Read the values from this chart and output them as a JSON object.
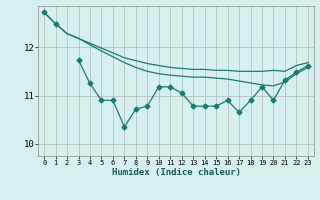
{
  "title": "",
  "xlabel": "Humidex (Indice chaleur)",
  "ylabel": "",
  "bg_color": "#d5f0ee",
  "line_color": "#1a7a6e",
  "grid_color": "#b0b8b4",
  "xlim": [
    -0.5,
    23.5
  ],
  "ylim": [
    9.75,
    12.85
  ],
  "yticks": [
    10,
    11,
    12
  ],
  "xticks": [
    0,
    1,
    2,
    3,
    4,
    5,
    6,
    7,
    8,
    9,
    10,
    11,
    12,
    13,
    14,
    15,
    16,
    17,
    18,
    19,
    20,
    21,
    22,
    23
  ],
  "series1": [
    12.72,
    12.48,
    12.28,
    12.18,
    12.08,
    11.98,
    11.88,
    11.78,
    11.72,
    11.66,
    11.62,
    11.58,
    11.56,
    11.54,
    11.54,
    11.52,
    11.52,
    11.5,
    11.5,
    11.5,
    11.52,
    11.5,
    11.62,
    11.68
  ],
  "series2": [
    12.72,
    12.48,
    12.28,
    12.18,
    12.05,
    11.92,
    11.8,
    11.68,
    11.58,
    11.5,
    11.45,
    11.42,
    11.4,
    11.38,
    11.38,
    11.36,
    11.34,
    11.3,
    11.26,
    11.22,
    11.2,
    11.28,
    11.45,
    11.58
  ],
  "series3_x": [
    3,
    4,
    5,
    6,
    7,
    8,
    9,
    10,
    11,
    12,
    13,
    14,
    15,
    16,
    17,
    18,
    19,
    20,
    21,
    22,
    23
  ],
  "series3": [
    11.73,
    11.25,
    10.9,
    10.9,
    10.35,
    10.72,
    10.78,
    11.18,
    11.18,
    11.05,
    10.78,
    10.78,
    10.78,
    10.9,
    10.65,
    10.9,
    11.18,
    10.9,
    11.32,
    11.48,
    11.62
  ],
  "figsize": [
    3.2,
    2.0
  ],
  "dpi": 100
}
